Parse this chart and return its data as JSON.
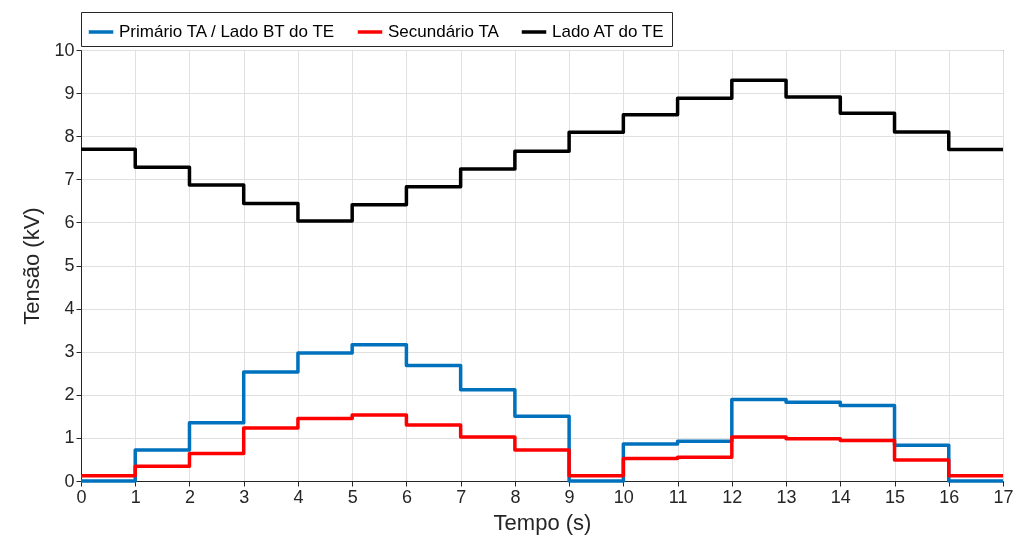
{
  "chart_data": {
    "type": "step",
    "xlabel": "Tempo (s)",
    "ylabel": "Tensão (kV)",
    "x": [
      0,
      1,
      2,
      3,
      4,
      5,
      6,
      7,
      8,
      9,
      10,
      11,
      12,
      13,
      14,
      15,
      16,
      17
    ],
    "series": [
      {
        "name": "Primário TA / Lado BT do TE",
        "color": "#0072bd",
        "values": [
          0,
          0.72,
          1.35,
          2.53,
          2.97,
          3.16,
          2.68,
          2.12,
          1.5,
          0,
          0.86,
          0.92,
          1.89,
          1.83,
          1.75,
          0.83,
          0,
          0
        ]
      },
      {
        "name": "Secundário TA",
        "color": "#ff0000",
        "values": [
          0.12,
          0.34,
          0.64,
          1.23,
          1.45,
          1.53,
          1.3,
          1.02,
          0.72,
          0.12,
          0.52,
          0.55,
          1.02,
          0.98,
          0.94,
          0.49,
          0.12,
          0.12
        ]
      },
      {
        "name": "Lado AT do TE",
        "color": "#000000",
        "values": [
          7.7,
          7.28,
          6.87,
          6.44,
          6.03,
          6.41,
          6.83,
          7.24,
          7.65,
          8.09,
          8.5,
          8.88,
          9.3,
          8.91,
          8.53,
          8.1,
          7.69,
          7.69
        ]
      }
    ],
    "xlim": [
      0,
      17
    ],
    "xticks": [
      0,
      1,
      2,
      3,
      4,
      5,
      6,
      7,
      8,
      9,
      10,
      11,
      12,
      13,
      14,
      15,
      16,
      17
    ],
    "ylim": [
      0,
      10
    ],
    "yticks": [
      0,
      1,
      2,
      3,
      4,
      5,
      6,
      7,
      8,
      9,
      10
    ],
    "grid": true,
    "legend": "top",
    "marker": "none",
    "line_style": "solid"
  }
}
